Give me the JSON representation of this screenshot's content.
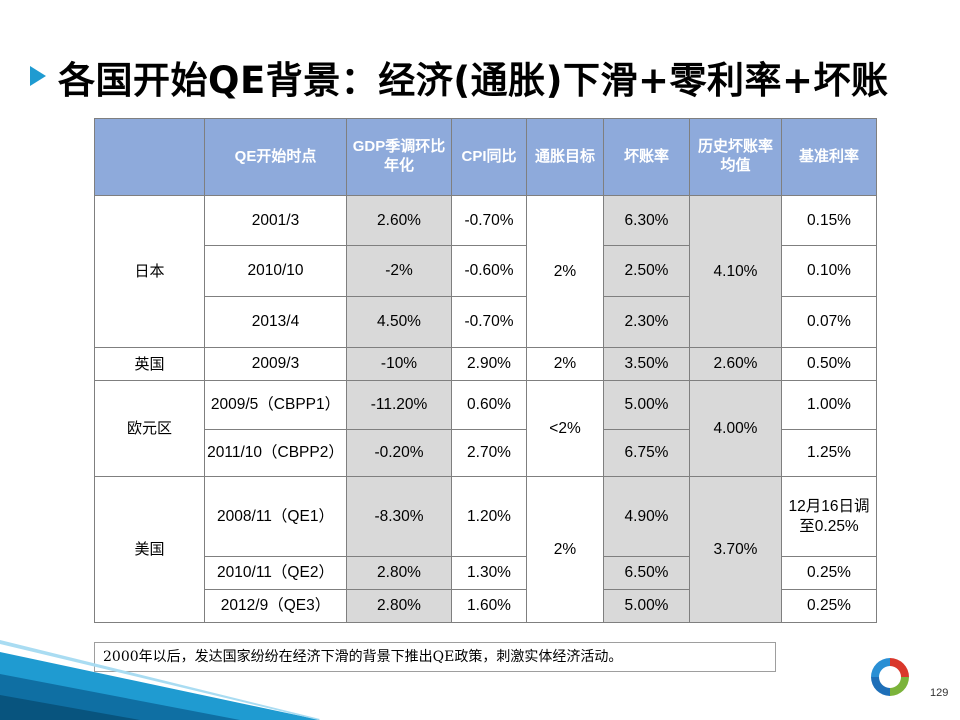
{
  "title": "各国开始QE背景：经济(通胀)下滑+零利率+坏账",
  "table": {
    "headers": {
      "country": "",
      "start": "QE开始时点",
      "gdp": "GDP季调环比年化",
      "cpi": "CPI同比",
      "target": "通胀目标",
      "bad_debt": "坏账率",
      "hist_avg": "历史坏账率均值",
      "rate": "基准利率"
    },
    "japan": {
      "name": "日本",
      "target": "2%",
      "hist_avg": "4.10%",
      "rows": [
        {
          "start": "2001/3",
          "gdp": "2.60%",
          "cpi": "-0.70%",
          "bad_debt": "6.30%",
          "rate": "0.15%"
        },
        {
          "start": "2010/10",
          "gdp": "-2%",
          "cpi": "-0.60%",
          "bad_debt": "2.50%",
          "rate": "0.10%"
        },
        {
          "start": "2013/4",
          "gdp": "4.50%",
          "cpi": "-0.70%",
          "bad_debt": "2.30%",
          "rate": "0.07%"
        }
      ]
    },
    "uk": {
      "name": "英国",
      "rows": [
        {
          "start": "2009/3",
          "gdp": "-10%",
          "cpi": "2.90%",
          "target": "2%",
          "bad_debt": "3.50%",
          "hist_avg": "2.60%",
          "rate": "0.50%"
        }
      ]
    },
    "euro": {
      "name": "欧元区",
      "target": "<2%",
      "hist_avg": "4.00%",
      "rows": [
        {
          "start": "2009/5（CBPP1）",
          "gdp": "-11.20%",
          "cpi": "0.60%",
          "bad_debt": "5.00%",
          "rate": "1.00%"
        },
        {
          "start": "2011/10（CBPP2）",
          "gdp": "-0.20%",
          "cpi": "2.70%",
          "bad_debt": "6.75%",
          "rate": "1.25%"
        }
      ]
    },
    "us": {
      "name": "美国",
      "target": "2%",
      "hist_avg": "3.70%",
      "rows": [
        {
          "start": "2008/11（QE1）",
          "gdp": "-8.30%",
          "cpi": "1.20%",
          "bad_debt": "4.90%",
          "rate": "12月16日调至0.25%"
        },
        {
          "start": "2010/11（QE2）",
          "gdp": "2.80%",
          "cpi": "1.30%",
          "bad_debt": "6.50%",
          "rate": "0.25%"
        },
        {
          "start": "2012/9（QE3）",
          "gdp": "2.80%",
          "cpi": "1.60%",
          "bad_debt": "5.00%",
          "rate": "0.25%"
        }
      ]
    }
  },
  "note": "2000年以后，发达国家纷纷在经济下滑的背景下推出QE政策，刺激实体经济活动。",
  "page_number": "129",
  "colors": {
    "header_bg": "#8eaadb",
    "grey_cell": "#d9d9d9",
    "accent_blue": "#1f9bd1",
    "logo_red": "#d9372b",
    "logo_blue": "#1e6fb8",
    "logo_green": "#7bb33a"
  }
}
